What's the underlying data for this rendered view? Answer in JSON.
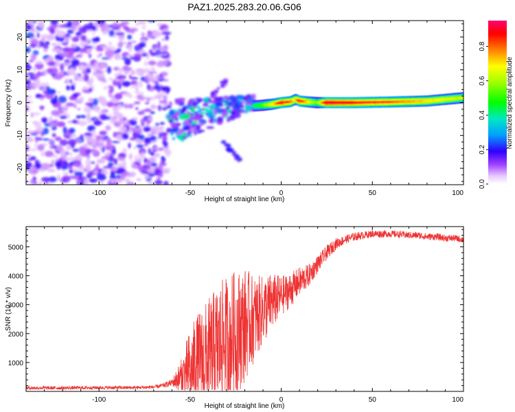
{
  "title": "PAZ1.2025.283.20.06.G06",
  "chart_data": [
    {
      "type": "heatmap",
      "xlabel": "Height of straight line (km)",
      "ylabel": "Frequency (Hz)",
      "xlim": [
        -140,
        100
      ],
      "ylim": [
        -25,
        25
      ],
      "xticks": [
        -100,
        -50,
        0,
        50,
        100
      ],
      "yticks": [
        -20,
        -10,
        0,
        10,
        20
      ],
      "xtick_labels": [
        "-100",
        "-50",
        "0",
        "50",
        "100"
      ],
      "ytick_labels": [
        "-20",
        "-10",
        "0",
        "10",
        "20"
      ],
      "colorbar": {
        "label": "Normalized spectral amplitude",
        "range": [
          0.0,
          0.95
        ],
        "ticks": [
          0.0,
          0.2,
          0.4,
          0.6,
          0.8
        ],
        "tick_labels": [
          "0.0",
          "0.2",
          "0.4",
          "0.6",
          "0.8"
        ]
      },
      "regions": [
        {
          "name": "noise",
          "x_range": [
            -140,
            -62
          ],
          "freq_range": [
            -25,
            25
          ],
          "amplitude_range": [
            0.05,
            0.25
          ]
        },
        {
          "name": "transition",
          "x_range": [
            -62,
            -15
          ],
          "freq_range": [
            -18,
            9
          ],
          "amplitude_range": [
            0.1,
            0.45
          ]
        },
        {
          "name": "carrier-line",
          "x_range": [
            -15,
            100
          ],
          "freq_center": 0.5,
          "amplitude_range": [
            0.5,
            0.95
          ]
        }
      ],
      "ridge": {
        "x": [
          -15,
          -10,
          -5,
          0,
          5,
          8,
          10,
          15,
          20,
          25,
          40,
          60,
          80,
          90,
          100
        ],
        "freq": [
          -1,
          -0.8,
          -0.5,
          0,
          0.3,
          1,
          0.5,
          0.2,
          0,
          0,
          0,
          0.2,
          0.5,
          1,
          1.5
        ],
        "amplitude": [
          0.45,
          0.55,
          0.7,
          0.9,
          0.85,
          0.7,
          0.9,
          0.75,
          0.55,
          0.95,
          0.9,
          0.85,
          0.75,
          0.7,
          0.65
        ]
      }
    },
    {
      "type": "line",
      "xlabel": "Height of straight line (km)",
      "ylabel": "SNR (10 * v/v)",
      "xlim": [
        -140,
        100
      ],
      "ylim": [
        0,
        5700
      ],
      "xticks": [
        -100,
        -50,
        0,
        50,
        100
      ],
      "yticks": [
        1000,
        2000,
        3000,
        4000,
        5000
      ],
      "xtick_labels": [
        "-100",
        "-50",
        "0",
        "50",
        "100"
      ],
      "ytick_labels": [
        "1000",
        "2000",
        "3000",
        "4000",
        "5000"
      ],
      "color": "#ee3333",
      "series": [
        {
          "name": "SNR",
          "x": [
            -140,
            -120,
            -100,
            -80,
            -70,
            -65,
            -60,
            -55,
            -50,
            -45,
            -40,
            -35,
            -30,
            -25,
            -20,
            -15,
            -10,
            -5,
            0,
            5,
            10,
            15,
            20,
            25,
            30,
            35,
            40,
            45,
            50,
            55,
            60,
            65,
            70,
            75,
            80,
            85,
            90,
            95,
            100
          ],
          "y": [
            120,
            120,
            130,
            130,
            150,
            200,
            300,
            500,
            800,
            1000,
            1200,
            1500,
            1800,
            2000,
            2300,
            2500,
            2800,
            3100,
            3300,
            3500,
            3800,
            4000,
            4400,
            4800,
            5100,
            5250,
            5350,
            5400,
            5450,
            5450,
            5450,
            5430,
            5400,
            5400,
            5350,
            5350,
            5300,
            5300,
            5250
          ],
          "fluctuation_amplitude": [
            60,
            60,
            60,
            60,
            60,
            80,
            120,
            600,
            1400,
            1800,
            2000,
            2200,
            2200,
            2200,
            2000,
            1500,
            1200,
            1000,
            700,
            600,
            500,
            400,
            300,
            250,
            200,
            150,
            150,
            130,
            130,
            130,
            120,
            120,
            120,
            120,
            120,
            120,
            120,
            120,
            120
          ]
        }
      ]
    }
  ]
}
